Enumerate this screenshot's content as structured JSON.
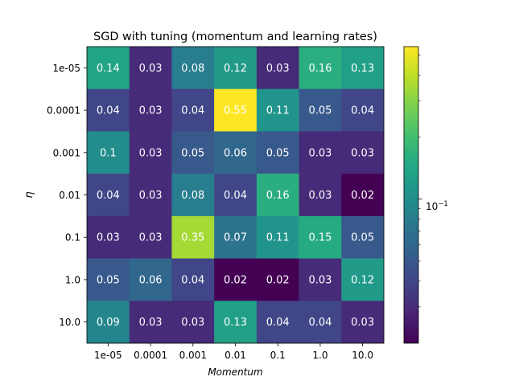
{
  "chart_data": {
    "type": "heatmap",
    "title": "SGD with tuning (momentum and learning rates)",
    "xlabel": "Momentum",
    "ylabel": "η",
    "x_categories": [
      "1e-05",
      "0.0001",
      "0.001",
      "0.01",
      "0.1",
      "1.0",
      "10.0"
    ],
    "y_categories": [
      "1e-05",
      "0.0001",
      "0.001",
      "0.01",
      "0.1",
      "1.0",
      "10.0"
    ],
    "values": [
      [
        0.14,
        0.03,
        0.08,
        0.12,
        0.03,
        0.16,
        0.13
      ],
      [
        0.04,
        0.03,
        0.04,
        0.55,
        0.11,
        0.05,
        0.04
      ],
      [
        0.1,
        0.03,
        0.05,
        0.06,
        0.05,
        0.03,
        0.03
      ],
      [
        0.04,
        0.03,
        0.08,
        0.04,
        0.16,
        0.03,
        0.02
      ],
      [
        0.03,
        0.03,
        0.35,
        0.07,
        0.11,
        0.15,
        0.05
      ],
      [
        0.05,
        0.06,
        0.04,
        0.02,
        0.02,
        0.03,
        0.12
      ],
      [
        0.09,
        0.03,
        0.03,
        0.13,
        0.04,
        0.04,
        0.03
      ]
    ],
    "cell_labels": [
      [
        "0.14",
        "0.03",
        "0.08",
        "0.12",
        "0.03",
        "0.16",
        "0.13"
      ],
      [
        "0.04",
        "0.03",
        "0.04",
        "0.55",
        "0.11",
        "0.05",
        "0.04"
      ],
      [
        "0.1",
        "0.03",
        "0.05",
        "0.06",
        "0.05",
        "0.03",
        "0.03"
      ],
      [
        "0.04",
        "0.03",
        "0.08",
        "0.04",
        "0.16",
        "0.03",
        "0.02"
      ],
      [
        "0.03",
        "0.03",
        "0.35",
        "0.07",
        "0.11",
        "0.15",
        "0.05"
      ],
      [
        "0.05",
        "0.06",
        "0.04",
        "0.02",
        "0.02",
        "0.03",
        "0.12"
      ],
      [
        "0.09",
        "0.03",
        "0.03",
        "0.13",
        "0.04",
        "0.04",
        "0.03"
      ]
    ],
    "colormap": "viridis",
    "color_scale": "log",
    "vmin": 0.02,
    "vmax": 0.55,
    "colorbar": {
      "major_ticks": [
        0.1
      ],
      "major_tick_labels": [
        "10"
      ],
      "major_tick_exponent": "−1",
      "minor_ticks": [
        0.03,
        0.04,
        0.05,
        0.06,
        0.07,
        0.08,
        0.09,
        0.2,
        0.3,
        0.4,
        0.5
      ]
    }
  }
}
